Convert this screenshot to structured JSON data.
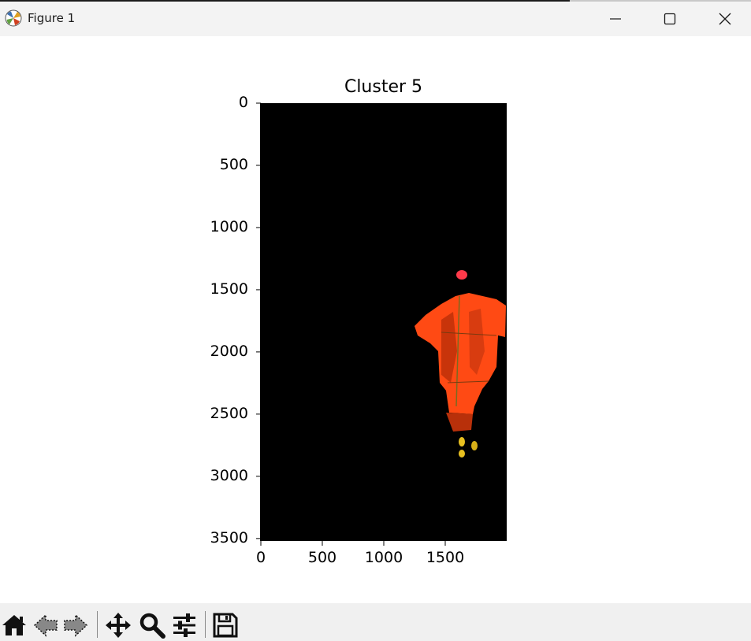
{
  "window": {
    "title": "Figure 1",
    "icons": [
      "matplotlib-icon",
      "minimize-icon",
      "maximize-icon",
      "close-icon"
    ]
  },
  "figure": {
    "axes_title": "Cluster 5",
    "background": "#ffffff",
    "image_background": "#000000",
    "subject_colors": [
      "#ff4a14",
      "#c8340a",
      "#e8c020",
      "#ff3a4a"
    ]
  },
  "chart_data": {
    "type": "image",
    "title": "Cluster 5",
    "xlabel": "",
    "ylabel": "",
    "xlim": [
      0,
      2000
    ],
    "ylim": [
      3520,
      0
    ],
    "x_ticks": [
      0,
      500,
      1000,
      1500
    ],
    "y_ticks": [
      0,
      500,
      1000,
      1500,
      2000,
      2500,
      3000,
      3500
    ],
    "x_tick_labels": [
      "0",
      "500",
      "1000",
      "1500"
    ],
    "y_tick_labels": [
      "0",
      "500",
      "1000",
      "1500",
      "2000",
      "2500",
      "3000",
      "3500"
    ],
    "grid": false
  },
  "toolbar": {
    "items": [
      "home-icon",
      "back-icon",
      "forward-icon",
      "pan-icon",
      "zoom-icon",
      "configure-subplots-icon",
      "save-icon"
    ]
  }
}
